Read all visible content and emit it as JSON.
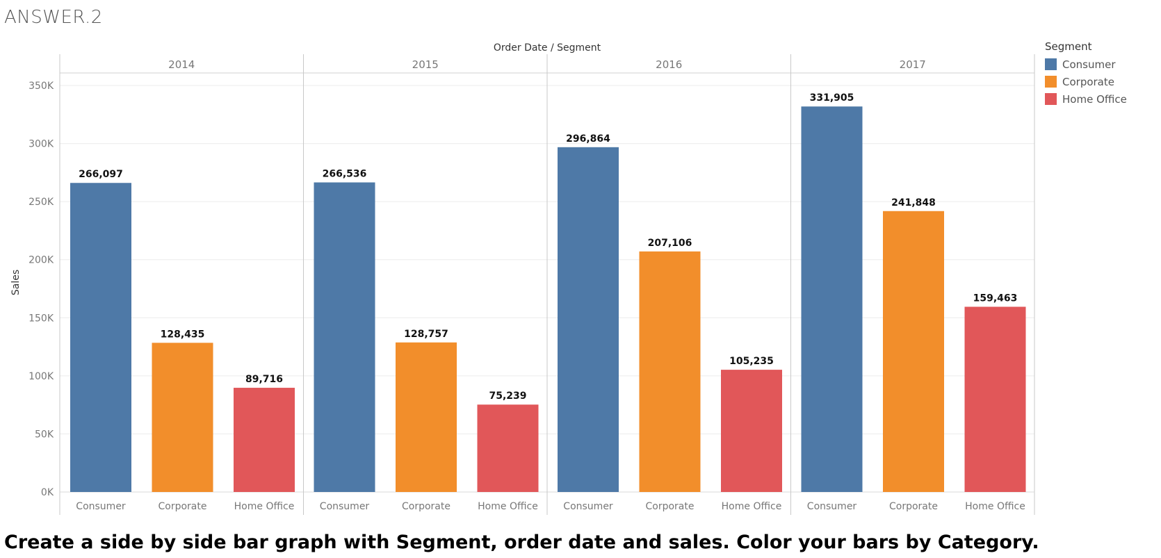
{
  "page": {
    "title": "ANSWER.2",
    "instruction": "Create a side by side bar graph with Segment, order date and sales. Color your bars by Category."
  },
  "legend": {
    "title": "Segment",
    "items": [
      {
        "label": "Consumer",
        "color": "#4e79a7"
      },
      {
        "label": "Corporate",
        "color": "#f28e2b"
      },
      {
        "label": "Home Office",
        "color": "#e15759"
      }
    ]
  },
  "chart_data": {
    "type": "bar",
    "title": "Order Date / Segment",
    "ylabel": "Sales",
    "ylim": [
      0,
      350000
    ],
    "yticks": [
      0,
      50000,
      100000,
      150000,
      200000,
      250000,
      300000,
      350000
    ],
    "ytick_labels": [
      "0K",
      "50K",
      "100K",
      "150K",
      "200K",
      "250K",
      "300K",
      "350K"
    ],
    "grid": true,
    "legend_position": "top-right",
    "groups": [
      "2014",
      "2015",
      "2016",
      "2017"
    ],
    "categories": [
      "Consumer",
      "Corporate",
      "Home Office"
    ],
    "colors": [
      "#4e79a7",
      "#f28e2b",
      "#e15759"
    ],
    "values": [
      [
        266097,
        128435,
        89716
      ],
      [
        266536,
        128757,
        75239
      ],
      [
        296864,
        207106,
        105235
      ],
      [
        331905,
        241848,
        159463
      ]
    ],
    "value_labels": [
      [
        "266,097",
        "128,435",
        "89,716"
      ],
      [
        "266,536",
        "128,757",
        "75,239"
      ],
      [
        "296,864",
        "207,106",
        "105,235"
      ],
      [
        "331,905",
        "241,848",
        "159,463"
      ]
    ]
  }
}
